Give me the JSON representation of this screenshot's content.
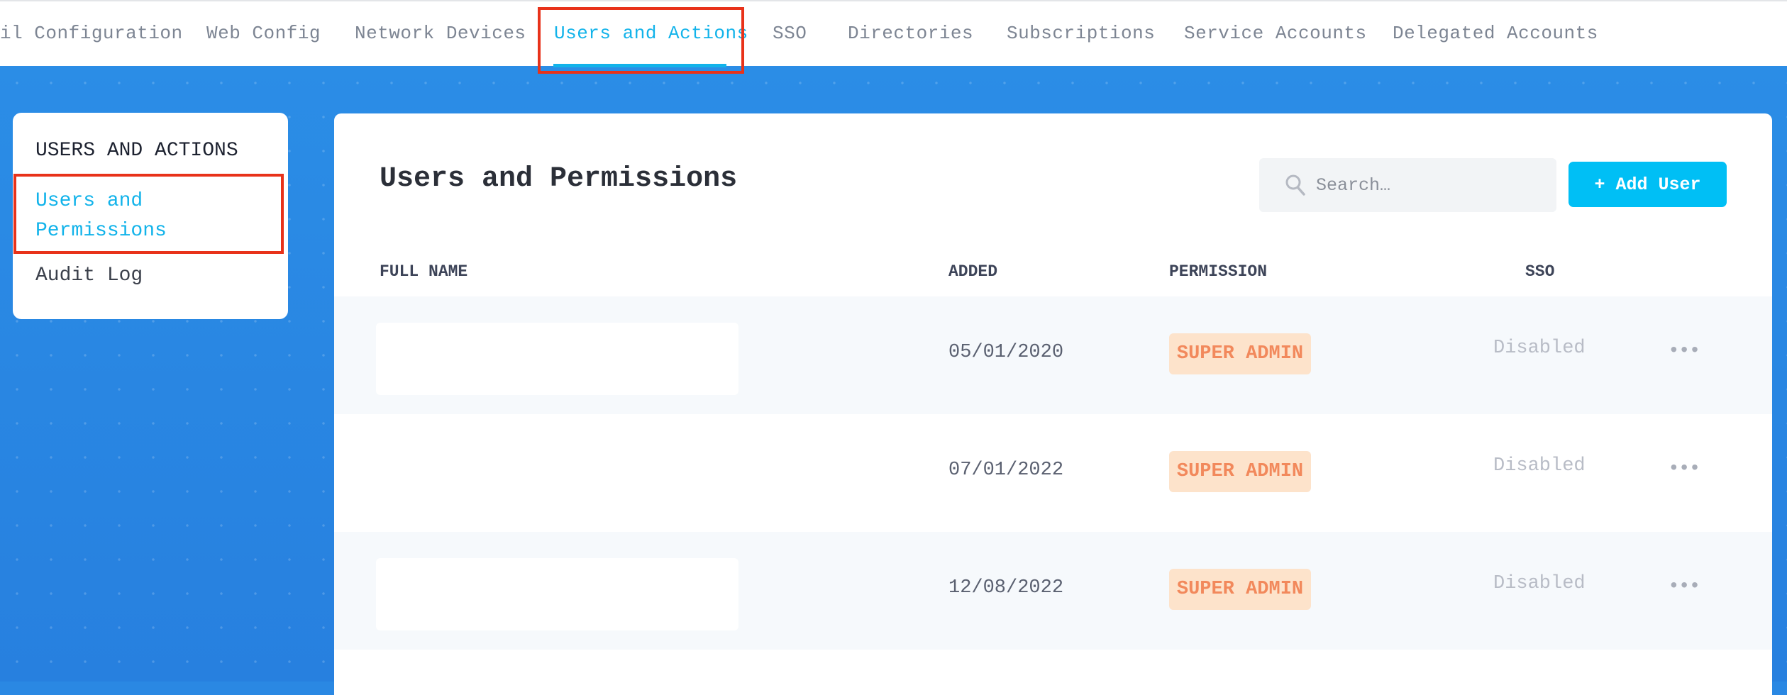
{
  "tabs": [
    {
      "label": "il Configuration"
    },
    {
      "label": "Web Config"
    },
    {
      "label": "Network Devices"
    },
    {
      "label": "Users and Actions",
      "active": true
    },
    {
      "label": "SSO"
    },
    {
      "label": "Directories"
    },
    {
      "label": "Subscriptions"
    },
    {
      "label": "Service Accounts"
    },
    {
      "label": "Delegated Accounts"
    }
  ],
  "sidebar": {
    "heading": "USERS AND ACTIONS",
    "items": [
      {
        "label": "Users and Permissions",
        "active": true
      },
      {
        "label": "Audit Log"
      }
    ]
  },
  "main": {
    "title": "Users and Permissions",
    "search_placeholder": "Search…",
    "add_user_label": "+ Add User",
    "columns": [
      "FULL NAME",
      "ADDED",
      "PERMISSION",
      "SSO"
    ],
    "rows": [
      {
        "name": "",
        "added": "05/01/2020",
        "permission": "SUPER ADMIN",
        "sso": "Disabled"
      },
      {
        "name": "",
        "added": "07/01/2022",
        "permission": "SUPER ADMIN",
        "sso": "Disabled"
      },
      {
        "name": "",
        "added": "12/08/2022",
        "permission": "SUPER ADMIN",
        "sso": "Disabled"
      }
    ],
    "more_label": "•••"
  },
  "colors": {
    "accent": "#12b3ea",
    "button": "#00bff5",
    "badge_bg": "#fde3cb",
    "badge_text": "#f2895c",
    "background": "#2b8ae4",
    "highlight": "#e8321a"
  }
}
